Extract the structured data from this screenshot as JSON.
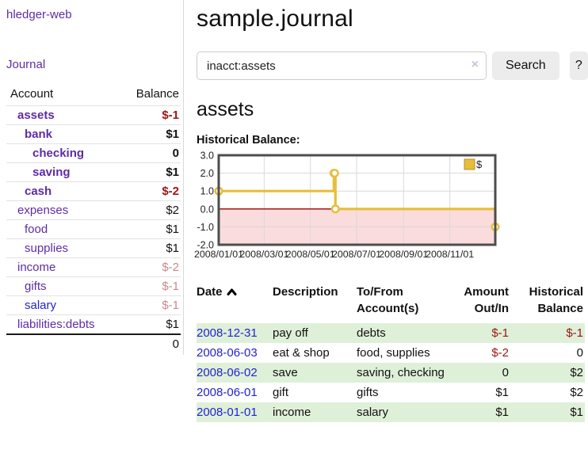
{
  "app": {
    "title": "hledger-web"
  },
  "sidebar": {
    "journal_link": "Journal",
    "accounts": {
      "headers": {
        "account": "Account",
        "balance": "Balance"
      },
      "rows": [
        {
          "account": "assets",
          "balance": "$-1",
          "indent": 1,
          "emph": true,
          "acct_color": "purple",
          "bal_color": "neg"
        },
        {
          "account": "bank",
          "balance": "$1",
          "indent": 2,
          "emph": true,
          "acct_color": "purple",
          "bal_color": "pos"
        },
        {
          "account": "checking",
          "balance": "0",
          "indent": 3,
          "emph": true,
          "acct_color": "purple",
          "bal_color": "pos"
        },
        {
          "account": "saving",
          "balance": "$1",
          "indent": 3,
          "emph": true,
          "acct_color": "purple",
          "bal_color": "pos"
        },
        {
          "account": "cash",
          "balance": "$-2",
          "indent": 2,
          "emph": true,
          "acct_color": "purple",
          "bal_color": "neg"
        },
        {
          "account": "expenses",
          "balance": "$2",
          "indent": 1,
          "emph": false,
          "acct_color": "purple",
          "bal_color": "pos"
        },
        {
          "account": "food",
          "balance": "$1",
          "indent": 2,
          "emph": false,
          "acct_color": "purple",
          "bal_color": "pos"
        },
        {
          "account": "supplies",
          "balance": "$1",
          "indent": 2,
          "emph": false,
          "acct_color": "purple",
          "bal_color": "pos"
        },
        {
          "account": "income",
          "balance": "$-2",
          "indent": 1,
          "emph": false,
          "acct_color": "purple",
          "bal_color": "neg-dim"
        },
        {
          "account": "gifts",
          "balance": "$-1",
          "indent": 2,
          "emph": false,
          "acct_color": "purple",
          "bal_color": "neg-dim"
        },
        {
          "account": "salary",
          "balance": "$-1",
          "indent": 2,
          "emph": false,
          "acct_color": "blue",
          "bal_color": "neg-dim"
        },
        {
          "account": "liabilities:debts",
          "balance": "$1",
          "indent": 1,
          "emph": false,
          "acct_color": "purple",
          "bal_color": "pos"
        }
      ],
      "total": "0"
    }
  },
  "main": {
    "title": "sample.journal",
    "search": {
      "value": "inacct:assets",
      "clear_icon": "×",
      "button_label": "Search",
      "help_label": "?"
    },
    "account_heading": "assets",
    "chart_label": "Historical Balance:",
    "register": {
      "headers": [
        {
          "label": "Date",
          "sortable": true
        },
        {
          "label": "Description"
        },
        {
          "label": "To/From\nAccount(s)"
        },
        {
          "label": "Amount\nOut/In",
          "align": "right"
        },
        {
          "label": "Historical\nBalance",
          "align": "right"
        }
      ],
      "rows": [
        {
          "date": "2008-12-31",
          "description": "pay off",
          "accounts": "debts",
          "amount": "$-1",
          "amount_neg": true,
          "balance": "$-1",
          "balance_neg": true
        },
        {
          "date": "2008-06-03",
          "description": "eat & shop",
          "accounts": "food, supplies",
          "amount": "$-2",
          "amount_neg": true,
          "balance": "0",
          "balance_neg": false
        },
        {
          "date": "2008-06-02",
          "description": "save",
          "accounts": "saving, checking",
          "amount": "0",
          "amount_neg": false,
          "balance": "$2",
          "balance_neg": false
        },
        {
          "date": "2008-06-01",
          "description": "gift",
          "accounts": "gifts",
          "amount": "$1",
          "amount_neg": false,
          "balance": "$2",
          "balance_neg": false
        },
        {
          "date": "2008-01-01",
          "description": "income",
          "accounts": "salary",
          "amount": "$1",
          "amount_neg": false,
          "balance": "$1",
          "balance_neg": false
        }
      ]
    }
  },
  "chart_data": {
    "type": "line",
    "step": true,
    "title": "Historical Balance",
    "legend": [
      {
        "label": "$",
        "color": "#e7bd3a"
      }
    ],
    "x": [
      "2008-01-01",
      "2008-06-01",
      "2008-06-02",
      "2008-06-03",
      "2008-12-31"
    ],
    "values": [
      1,
      2,
      2,
      0,
      -1
    ],
    "x_ticks": [
      "2008/01/01",
      "2008/03/01",
      "2008/05/01",
      "2008/07/01",
      "2008/09/01",
      "2008/11/01"
    ],
    "y_ticks": [
      3.0,
      2.0,
      1.0,
      0.0,
      -1.0,
      -2.0
    ],
    "ylim": [
      -2,
      3
    ],
    "xlim": [
      "2008-01-01",
      "2008-12-31"
    ],
    "grid": true,
    "legend_position": "top-right",
    "series_color": "#e7bd3a",
    "marker_fill": "#ffffff",
    "negative_region_color": "#fbdcdc",
    "zero_line_color": "#990000",
    "border_color": "#4d4d4d"
  },
  "colors": {
    "link_purple": "#5e2ca5",
    "link_blue": "#2323d3",
    "negative_strong": "#9d1414",
    "negative_dim": "#c98a8a",
    "row_stripe_green": "#dff0d8",
    "button_bg": "#ececec"
  }
}
